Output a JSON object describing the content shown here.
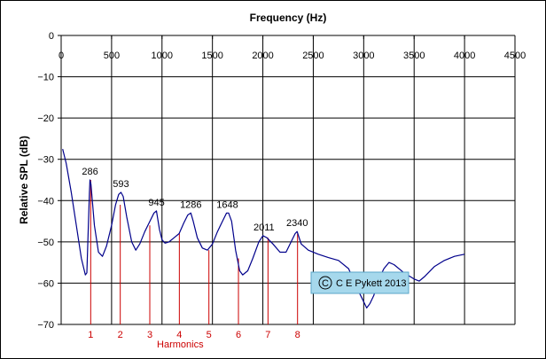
{
  "chart_data": {
    "type": "line",
    "title": "Frequency (Hz)",
    "xlabel": "Harmonics",
    "ylabel": "Relative SPL (dB)",
    "xlim": [
      0,
      4500
    ],
    "ylim": [
      -70,
      0
    ],
    "x_ticks": [
      0,
      500,
      1000,
      1500,
      2000,
      2500,
      3000,
      3500,
      4000,
      4500
    ],
    "y_ticks": [
      0,
      -10,
      -20,
      -30,
      -40,
      -50,
      -60,
      -70
    ],
    "x_axis_position": "top",
    "grid": {
      "horizontal": true,
      "vertical": true
    },
    "colors": {
      "line": "#00008b",
      "harmonics": "#cc0000",
      "copyright_box": "#a6d8ec",
      "copyright_border": "#5aa6c8"
    },
    "series": [
      {
        "points": [
          [
            15,
            -27.5
          ],
          [
            50,
            -31
          ],
          [
            100,
            -38
          ],
          [
            150,
            -46
          ],
          [
            200,
            -54
          ],
          [
            240,
            -58
          ],
          [
            255,
            -57.5
          ],
          [
            270,
            -46
          ],
          [
            280,
            -38
          ],
          [
            286,
            -35
          ],
          [
            295,
            -36
          ],
          [
            330,
            -46
          ],
          [
            370,
            -52.5
          ],
          [
            410,
            -53.5
          ],
          [
            450,
            -51
          ],
          [
            500,
            -46
          ],
          [
            540,
            -41
          ],
          [
            570,
            -38.5
          ],
          [
            593,
            -38
          ],
          [
            615,
            -39
          ],
          [
            650,
            -44
          ],
          [
            700,
            -50
          ],
          [
            740,
            -52
          ],
          [
            780,
            -50.5
          ],
          [
            830,
            -47.5
          ],
          [
            880,
            -45
          ],
          [
            920,
            -43
          ],
          [
            945,
            -42.5
          ],
          [
            975,
            -47
          ],
          [
            1000,
            -49.5
          ],
          [
            1030,
            -50.3
          ],
          [
            1070,
            -50
          ],
          [
            1120,
            -49
          ],
          [
            1170,
            -48
          ],
          [
            1215,
            -45.5
          ],
          [
            1255,
            -43.5
          ],
          [
            1286,
            -43
          ],
          [
            1310,
            -45
          ],
          [
            1350,
            -49
          ],
          [
            1400,
            -51.5
          ],
          [
            1450,
            -52
          ],
          [
            1500,
            -50.5
          ],
          [
            1550,
            -47.5
          ],
          [
            1600,
            -45
          ],
          [
            1640,
            -43
          ],
          [
            1660,
            -43
          ],
          [
            1690,
            -45
          ],
          [
            1730,
            -52
          ],
          [
            1770,
            -57
          ],
          [
            1800,
            -58
          ],
          [
            1850,
            -57
          ],
          [
            1900,
            -54
          ],
          [
            1960,
            -50
          ],
          [
            2000,
            -48.5
          ],
          [
            2040,
            -49
          ],
          [
            2100,
            -50.5
          ],
          [
            2170,
            -52.5
          ],
          [
            2230,
            -52.5
          ],
          [
            2280,
            -50
          ],
          [
            2320,
            -48
          ],
          [
            2340,
            -47.5
          ],
          [
            2380,
            -50.5
          ],
          [
            2450,
            -52
          ],
          [
            2550,
            -53
          ],
          [
            2650,
            -53.8
          ],
          [
            2750,
            -54.5
          ],
          [
            2850,
            -56.5
          ],
          [
            2950,
            -62
          ],
          [
            3000,
            -64.5
          ],
          [
            3030,
            -66
          ],
          [
            3060,
            -65
          ],
          [
            3100,
            -63
          ],
          [
            3150,
            -59
          ],
          [
            3200,
            -56.5
          ],
          [
            3250,
            -55
          ],
          [
            3300,
            -55.5
          ],
          [
            3400,
            -57.5
          ],
          [
            3500,
            -59
          ],
          [
            3550,
            -59.5
          ],
          [
            3600,
            -58.5
          ],
          [
            3700,
            -56
          ],
          [
            3800,
            -54.5
          ],
          [
            3900,
            -53.5
          ],
          [
            4000,
            -53
          ]
        ]
      }
    ],
    "peak_labels": [
      {
        "text": "286",
        "x": 286,
        "y": -35
      },
      {
        "text": "593",
        "x": 593,
        "y": -38
      },
      {
        "text": "945",
        "x": 945,
        "y": -42.5
      },
      {
        "text": "1286",
        "x": 1286,
        "y": -43
      },
      {
        "text": "1648",
        "x": 1648,
        "y": -43
      },
      {
        "text": "2011",
        "x": 2011,
        "y": -48.5
      },
      {
        "text": "2340",
        "x": 2340,
        "y": -47.5
      }
    ],
    "harmonics": [
      {
        "label": "1",
        "x": 293,
        "top": -35
      },
      {
        "label": "2",
        "x": 586,
        "top": -41
      },
      {
        "label": "3",
        "x": 879,
        "top": -46
      },
      {
        "label": "4",
        "x": 1172,
        "top": -48
      },
      {
        "label": "5",
        "x": 1465,
        "top": -52
      },
      {
        "label": "6",
        "x": 1758,
        "top": -54
      },
      {
        "label": "7",
        "x": 2051,
        "top": -49
      },
      {
        "label": "8",
        "x": 2344,
        "top": -48
      }
    ],
    "copyright": {
      "symbol": "C",
      "text": "C E Pykett 2013"
    }
  }
}
